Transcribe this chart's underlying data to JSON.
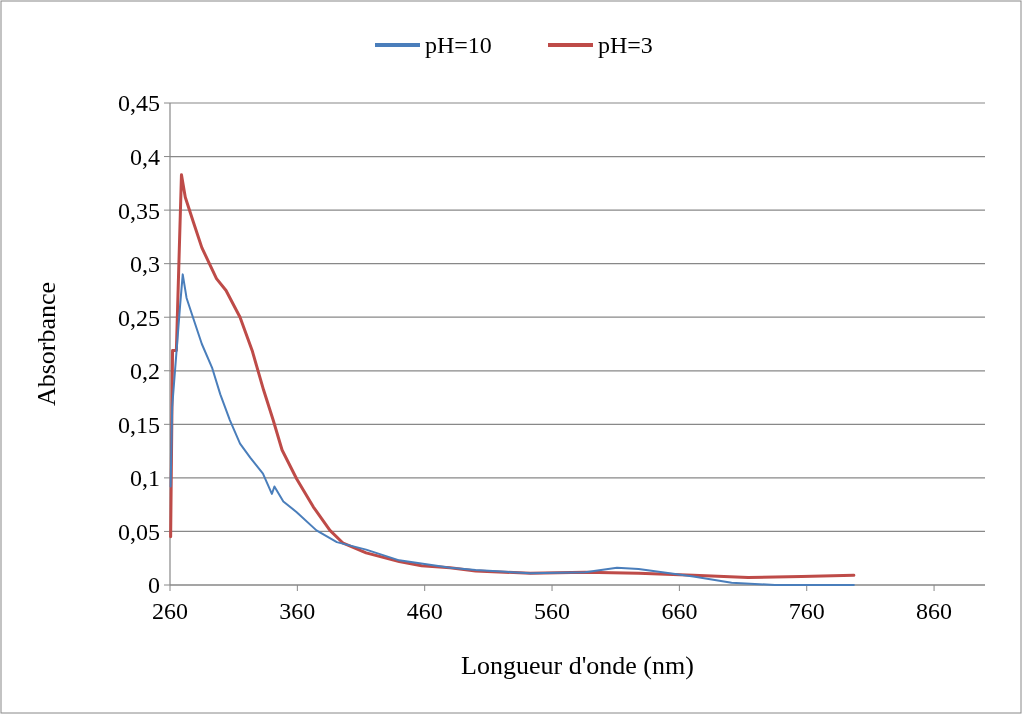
{
  "chart_data": {
    "type": "line",
    "xlabel": "Longueur d'onde (nm)",
    "ylabel": "Absorbance",
    "xlim": [
      260,
      900
    ],
    "xticks": [
      260,
      360,
      460,
      560,
      660,
      760,
      860
    ],
    "ylim": [
      0,
      0.45
    ],
    "yticks": [
      {
        "value": 0,
        "label": "0"
      },
      {
        "value": 0.05,
        "label": "0,05"
      },
      {
        "value": 0.1,
        "label": "0,1"
      },
      {
        "value": 0.15,
        "label": "0,15"
      },
      {
        "value": 0.2,
        "label": "0,2"
      },
      {
        "value": 0.25,
        "label": "0,25"
      },
      {
        "value": 0.3,
        "label": "0,3"
      },
      {
        "value": 0.35,
        "label": "0,35"
      },
      {
        "value": 0.4,
        "label": "0,4"
      },
      {
        "value": 0.45,
        "label": "0,45"
      }
    ],
    "grid": "y",
    "legend": "top",
    "marker": "none",
    "line_style": "solid",
    "series": [
      {
        "name": "pH=10",
        "color": "#4a7ebb",
        "x": [
          260.5,
          261.7,
          268,
          270,
          273,
          278,
          285,
          293,
          299.5,
          307,
          315,
          323,
          333,
          340,
          342,
          349,
          359.5,
          375,
          391,
          414,
          440,
          480,
          500,
          543,
          586,
          611,
          628,
          671,
          701,
          735,
          797
        ],
        "values": [
          0.092,
          0.166,
          0.262,
          0.29,
          0.268,
          0.25,
          0.225,
          0.203,
          0.178,
          0.154,
          0.132,
          0.119,
          0.104,
          0.085,
          0.092,
          0.078,
          0.068,
          0.051,
          0.04,
          0.033,
          0.023,
          0.016,
          0.014,
          0.011,
          0.012,
          0.016,
          0.015,
          0.008,
          0.002,
          0,
          0
        ]
      },
      {
        "name": "pH=3",
        "color": "#be4b48",
        "x": [
          260.5,
          262,
          265,
          269,
          272,
          278,
          285,
          296.5,
          304,
          315,
          324.5,
          333.5,
          341,
          348,
          359.5,
          372.5,
          385.6,
          396,
          414,
          440,
          457.6,
          480,
          500,
          543,
          586,
          628,
          671,
          714,
          756,
          797
        ],
        "values": [
          0.045,
          0.219,
          0.219,
          0.383,
          0.362,
          0.34,
          0.315,
          0.286,
          0.275,
          0.25,
          0.219,
          0.182,
          0.154,
          0.126,
          0.099,
          0.073,
          0.051,
          0.039,
          0.03,
          0.022,
          0.018,
          0.016,
          0.013,
          0.011,
          0.012,
          0.011,
          0.009,
          0.007,
          0.008,
          0.009
        ]
      }
    ]
  }
}
